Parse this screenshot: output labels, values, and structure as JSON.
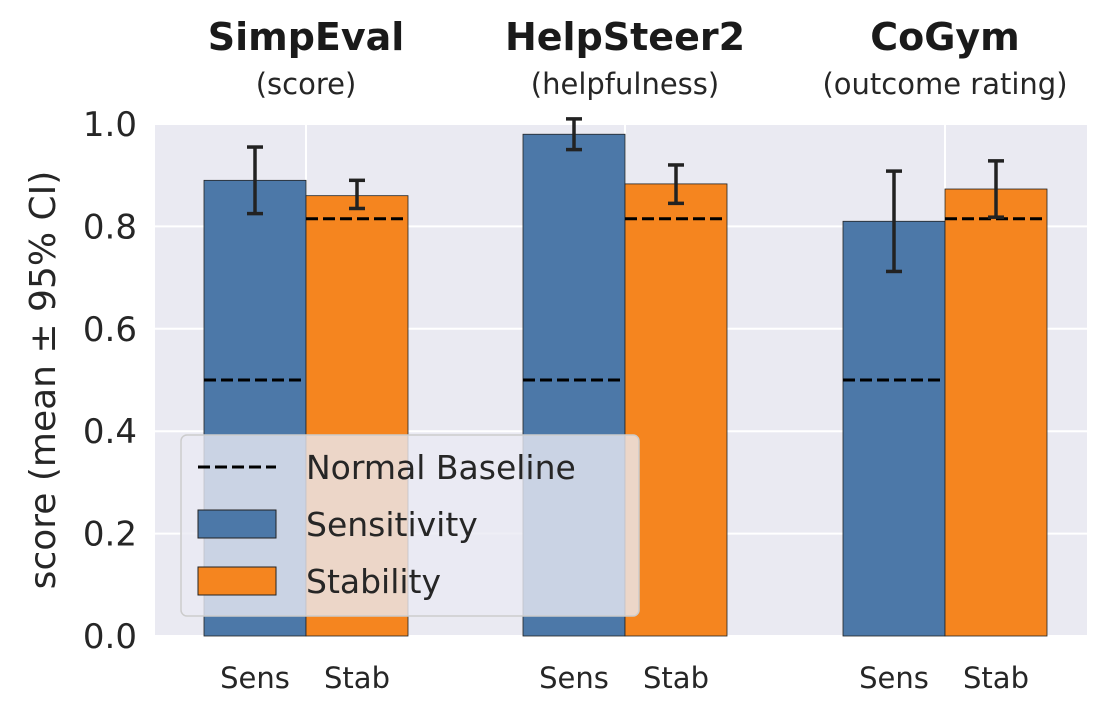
{
  "chart_data": {
    "type": "bar",
    "ylabel": "score (mean ± 95% CI)",
    "ylim": [
      0,
      1.0
    ],
    "yticks": [
      "0.0",
      "0.2",
      "0.4",
      "0.6",
      "0.8",
      "1.0"
    ],
    "grid": true,
    "legend_position": "lower-left",
    "legend": [
      {
        "label": "Normal Baseline",
        "style": "dashed-line",
        "color": "#000000"
      },
      {
        "label": "Sensitivity",
        "style": "patch",
        "color": "#4c78a8"
      },
      {
        "label": "Stability",
        "style": "patch",
        "color": "#f5851f"
      }
    ],
    "colors": {
      "sensitivity": "#4c78a8",
      "stability": "#f5851f",
      "background": "#eaeaf2",
      "grid": "#ffffff"
    },
    "panels": [
      {
        "title": "SimpEval",
        "subtitle": "(score)",
        "categories": [
          "Sens",
          "Stab"
        ],
        "values": [
          0.89,
          0.86
        ],
        "ci_low": [
          0.825,
          0.835
        ],
        "ci_high": [
          0.955,
          0.89
        ],
        "baselines": [
          0.5,
          0.815
        ]
      },
      {
        "title": "HelpSteer2",
        "subtitle": "(helpfulness)",
        "categories": [
          "Sens",
          "Stab"
        ],
        "values": [
          0.98,
          0.883
        ],
        "ci_low": [
          0.95,
          0.845
        ],
        "ci_high": [
          1.01,
          0.92
        ],
        "baselines": [
          0.5,
          0.815
        ]
      },
      {
        "title": "CoGym",
        "subtitle": "(outcome rating)",
        "categories": [
          "Sens",
          "Stab"
        ],
        "values": [
          0.81,
          0.873
        ],
        "ci_low": [
          0.712,
          0.818
        ],
        "ci_high": [
          0.908,
          0.928
        ],
        "baselines": [
          0.5,
          0.815
        ]
      }
    ]
  }
}
